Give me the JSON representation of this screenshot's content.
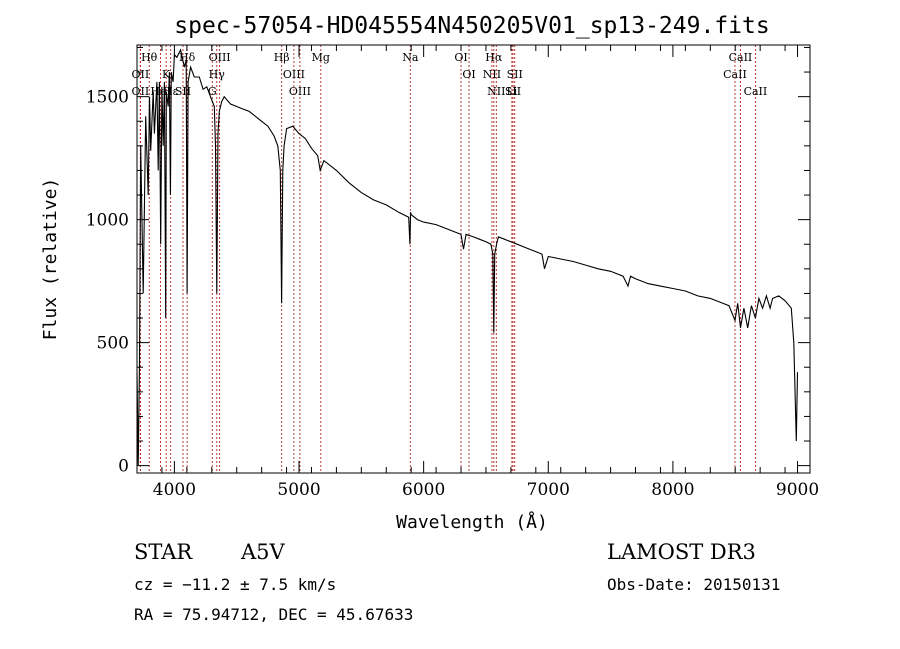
{
  "chart_data": {
    "type": "line",
    "title": "spec-57054-HD045554N450205V01_sp13-249.fits",
    "xlabel": "Wavelength (Å)",
    "ylabel": "Flux (relative)",
    "xlim": [
      3700,
      9100
    ],
    "ylim": [
      -30,
      1710
    ],
    "x_ticks": [
      4000,
      5000,
      6000,
      7000,
      8000,
      9000
    ],
    "x_tick_labels": [
      "4000",
      "5000",
      "6000",
      "7000",
      "8000",
      "9000"
    ],
    "y_ticks": [
      0,
      500,
      1000,
      1500
    ],
    "y_tick_labels": [
      "0",
      "500",
      "1000",
      "1500"
    ],
    "grid": false,
    "spectrum_color": "#000000",
    "line_marker_color": "#b22222",
    "series": [
      {
        "x": [
          3700,
          3710,
          3720,
          3730,
          3750,
          3770,
          3790,
          3800,
          3810,
          3830,
          3840,
          3860,
          3870,
          3880,
          3890,
          3900,
          3910,
          3920,
          3930,
          3935,
          3950,
          3960,
          3968,
          3975,
          3990,
          4000,
          4020,
          4050,
          4080,
          4095,
          4102,
          4110,
          4130,
          4160,
          4200,
          4230,
          4260,
          4290,
          4320,
          4330,
          4340,
          4350,
          4360,
          4380,
          4400,
          4450,
          4500,
          4550,
          4600,
          4650,
          4700,
          4750,
          4800,
          4830,
          4850,
          4860,
          4870,
          4880,
          4900,
          4950,
          5000,
          5050,
          5100,
          5150,
          5170,
          5200,
          5300,
          5400,
          5500,
          5600,
          5700,
          5800,
          5880,
          5890,
          5895,
          5900,
          5950,
          6000,
          6100,
          6200,
          6300,
          6320,
          6340,
          6400,
          6450,
          6500,
          6540,
          6555,
          6563,
          6570,
          6585,
          6600,
          6650,
          6700,
          6750,
          6800,
          6850,
          6900,
          6950,
          6970,
          7000,
          7100,
          7200,
          7300,
          7400,
          7500,
          7600,
          7640,
          7660,
          7700,
          7800,
          7900,
          8000,
          8100,
          8200,
          8300,
          8400,
          8450,
          8498,
          8520,
          8542,
          8570,
          8600,
          8630,
          8662,
          8690,
          8720,
          8750,
          8780,
          8800,
          8850,
          8900,
          8950,
          8970,
          8990,
          9000
        ],
        "y": [
          380,
          0,
          420,
          1300,
          700,
          1420,
          1100,
          1500,
          1280,
          1520,
          1350,
          1560,
          1200,
          1560,
          900,
          1540,
          1300,
          1560,
          600,
          1520,
          1460,
          1600,
          1100,
          1600,
          1560,
          1670,
          1660,
          1690,
          1620,
          1650,
          700,
          1560,
          1620,
          1580,
          1580,
          1530,
          1540,
          1500,
          1460,
          1300,
          700,
          1350,
          1440,
          1480,
          1500,
          1470,
          1460,
          1450,
          1440,
          1420,
          1400,
          1380,
          1340,
          1300,
          1200,
          660,
          1200,
          1300,
          1370,
          1380,
          1350,
          1330,
          1290,
          1260,
          1200,
          1240,
          1200,
          1150,
          1110,
          1080,
          1060,
          1030,
          1010,
          900,
          1030,
          1020,
          1000,
          990,
          980,
          960,
          940,
          880,
          940,
          930,
          920,
          910,
          900,
          860,
          540,
          860,
          900,
          930,
          920,
          910,
          900,
          890,
          880,
          870,
          860,
          800,
          850,
          840,
          830,
          815,
          800,
          790,
          770,
          730,
          770,
          760,
          740,
          730,
          720,
          710,
          690,
          680,
          660,
          650,
          590,
          660,
          560,
          640,
          560,
          650,
          600,
          680,
          640,
          690,
          640,
          680,
          690,
          670,
          640,
          500,
          100,
          380
        ]
      }
    ],
    "line_markers": [
      {
        "label": "Hθ",
        "x": 3798
      },
      {
        "label": "OII",
        "x": 3727
      },
      {
        "label": "OII",
        "x": 3727
      },
      {
        "label": "K",
        "x": 3934
      },
      {
        "label": "HeI",
        "x": 3889
      },
      {
        "label": "Hε",
        "x": 3970
      },
      {
        "label": "Hδ",
        "x": 4102
      },
      {
        "label": "SII",
        "x": 4069
      },
      {
        "label": "OIII",
        "x": 4363
      },
      {
        "label": "Hγ",
        "x": 4340
      },
      {
        "label": "G",
        "x": 4304
      },
      {
        "label": "Hβ",
        "x": 4861
      },
      {
        "label": "OIII",
        "x": 4959
      },
      {
        "label": "OIII",
        "x": 5007
      },
      {
        "label": "Mg",
        "x": 5175
      },
      {
        "label": "Na",
        "x": 5893
      },
      {
        "label": "OI",
        "x": 6300
      },
      {
        "label": "OI",
        "x": 6364
      },
      {
        "label": "Hα",
        "x": 6563
      },
      {
        "label": "NII",
        "x": 6548
      },
      {
        "label": "NII",
        "x": 6583
      },
      {
        "label": "Li",
        "x": 6708
      },
      {
        "label": "SII",
        "x": 6717
      },
      {
        "label": "SII",
        "x": 6731
      },
      {
        "label": "CaII",
        "x": 8542
      },
      {
        "label": "CaII",
        "x": 8498
      },
      {
        "label": "CaII",
        "x": 8662
      }
    ]
  },
  "info": {
    "object_class": "STAR",
    "subclass": "A5V",
    "survey": "LAMOST DR3",
    "cz": "cz = −11.2 ± 7.5 km/s",
    "obs_date": "Obs-Date: 20150131",
    "coords": "RA =  75.94712, DEC =  45.67633"
  }
}
